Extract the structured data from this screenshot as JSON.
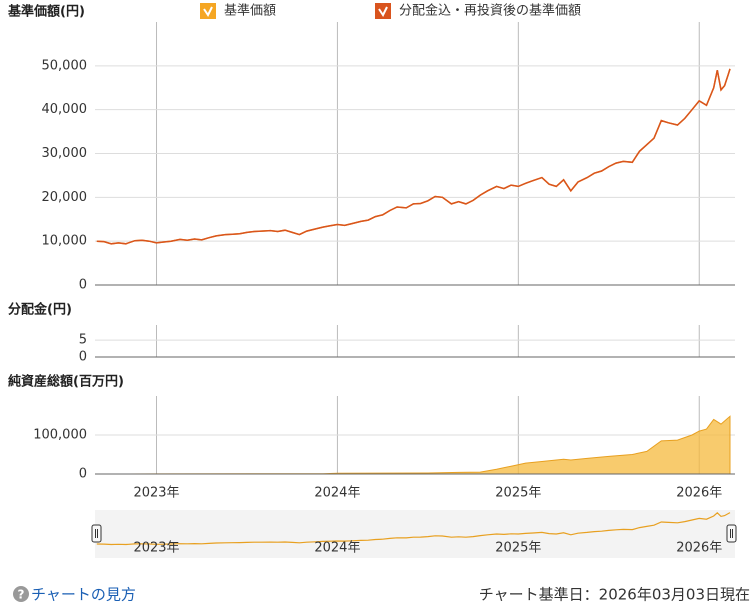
{
  "chart_data": [
    {
      "type": "line",
      "title": "基準価額(円)",
      "xlim": [
        2022.66,
        2026.17
      ],
      "xticks": [
        {
          "value": 2023,
          "label": "2023年"
        },
        {
          "value": 2024,
          "label": "2024年"
        },
        {
          "value": 2025,
          "label": "2025年"
        },
        {
          "value": 2026,
          "label": "2026年"
        }
      ],
      "ylim": [
        0,
        60000
      ],
      "yticks": [
        0,
        {
          "value": 10000,
          "label": "10,000"
        },
        {
          "value": 20000,
          "label": "20,000"
        },
        {
          "value": 30000,
          "label": "30,000"
        },
        {
          "value": 40000,
          "label": "40,000"
        },
        {
          "value": 50000,
          "label": "50,000"
        }
      ],
      "grid": true,
      "x": [
        2022.67,
        2022.71,
        2022.75,
        2022.79,
        2022.83,
        2022.88,
        2022.92,
        2022.96,
        2023.0,
        2023.04,
        2023.08,
        2023.13,
        2023.17,
        2023.21,
        2023.25,
        2023.29,
        2023.33,
        2023.38,
        2023.42,
        2023.46,
        2023.5,
        2023.54,
        2023.58,
        2023.63,
        2023.67,
        2023.71,
        2023.75,
        2023.79,
        2023.83,
        2023.88,
        2023.92,
        2023.96,
        2024.0,
        2024.04,
        2024.08,
        2024.13,
        2024.17,
        2024.21,
        2024.25,
        2024.29,
        2024.33,
        2024.38,
        2024.42,
        2024.46,
        2024.5,
        2024.54,
        2024.58,
        2024.63,
        2024.67,
        2024.71,
        2024.75,
        2024.79,
        2024.83,
        2024.88,
        2024.92,
        2024.96,
        2025.0,
        2025.04,
        2025.08,
        2025.13,
        2025.17,
        2025.21,
        2025.25,
        2025.29,
        2025.33,
        2025.38,
        2025.42,
        2025.46,
        2025.5,
        2025.54,
        2025.58,
        2025.63,
        2025.67,
        2025.71,
        2025.75,
        2025.79,
        2025.83,
        2025.88,
        2025.92,
        2025.96,
        2026.0,
        2026.04,
        2026.08,
        2026.1,
        2026.12,
        2026.14,
        2026.16,
        2026.17
      ],
      "series": [
        {
          "name": "基準価額",
          "color": "#f5a623",
          "values": [
            10000,
            9900,
            9400,
            9600,
            9400,
            10100,
            10200,
            10000,
            9600,
            9800,
            10000,
            10400,
            10200,
            10500,
            10300,
            10800,
            11200,
            11500,
            11600,
            11700,
            12000,
            12200,
            12300,
            12400,
            12200,
            12500,
            12000,
            11500,
            12300,
            12800,
            13200,
            13500,
            13800,
            13600,
            14000,
            14500,
            14800,
            15600,
            16000,
            17000,
            17800,
            17600,
            18500,
            18600,
            19200,
            20200,
            20000,
            18500,
            19000,
            18500,
            19300,
            20500,
            21500,
            22500,
            22000,
            22800,
            22500,
            23200,
            23800,
            24500,
            23000,
            22500,
            24000,
            21500,
            23500,
            24500,
            25500,
            26000,
            27000,
            27800,
            28200,
            28000,
            30500,
            32000,
            33500,
            37500,
            37000,
            36500,
            38000,
            40000,
            42000,
            41000,
            45000,
            49000,
            44500,
            45500,
            48000,
            49300
          ]
        },
        {
          "name": "分配金込・再投資後の基準価額",
          "color": "#d9541e",
          "values": [
            10000,
            9900,
            9400,
            9600,
            9400,
            10100,
            10200,
            10000,
            9600,
            9800,
            10000,
            10400,
            10200,
            10500,
            10300,
            10800,
            11200,
            11500,
            11600,
            11700,
            12000,
            12200,
            12300,
            12400,
            12200,
            12500,
            12000,
            11500,
            12300,
            12800,
            13200,
            13500,
            13800,
            13600,
            14000,
            14500,
            14800,
            15600,
            16000,
            17000,
            17800,
            17600,
            18500,
            18600,
            19200,
            20200,
            20000,
            18500,
            19000,
            18500,
            19300,
            20500,
            21500,
            22500,
            22000,
            22800,
            22500,
            23200,
            23800,
            24500,
            23000,
            22500,
            24000,
            21500,
            23500,
            24500,
            25500,
            26000,
            27000,
            27800,
            28200,
            28000,
            30500,
            32000,
            33500,
            37500,
            37000,
            36500,
            38000,
            40000,
            42000,
            41000,
            45000,
            49000,
            44500,
            45500,
            48000,
            49300
          ]
        }
      ]
    },
    {
      "type": "bar",
      "title": "分配金(円)",
      "ylim": [
        0,
        9.5
      ],
      "yticks": [
        0,
        5
      ],
      "grid": true
    },
    {
      "type": "area",
      "title": "純資産総額(百万円)",
      "ylim": [
        0,
        200000
      ],
      "yticks": [
        0,
        {
          "value": 100000,
          "label": "100,000"
        }
      ],
      "grid": true,
      "color": "#f5b93c",
      "x": [
        2022.67,
        2023.0,
        2023.5,
        2023.92,
        2024.0,
        2024.5,
        2024.67,
        2024.79,
        2024.88,
        2024.96,
        2025.04,
        2025.13,
        2025.25,
        2025.29,
        2025.38,
        2025.5,
        2025.63,
        2025.71,
        2025.79,
        2025.88,
        2025.96,
        2026.0,
        2026.04,
        2026.08,
        2026.12,
        2026.17
      ],
      "values": [
        0,
        200,
        500,
        800,
        2000,
        2500,
        4000,
        5000,
        12000,
        20000,
        28000,
        32000,
        38000,
        36000,
        40000,
        45000,
        50000,
        58000,
        85000,
        87000,
        100000,
        110000,
        115000,
        140000,
        128000,
        148000
      ]
    }
  ],
  "footer": {
    "help": "チャートの見方",
    "as_of": "チャート基準日：2026年03月03日現在"
  }
}
